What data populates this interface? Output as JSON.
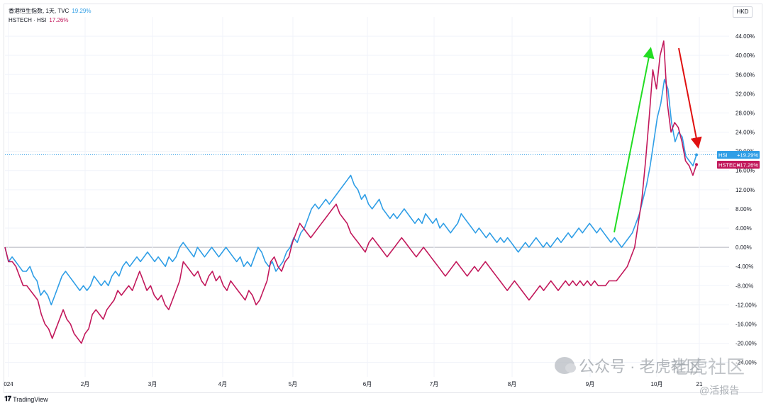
{
  "legend": {
    "hsi_title": "香港恒生指数, 1天, TVC",
    "hsi_value": "19.29%",
    "tech_title": "HSTECH · HSI",
    "tech_value": "17.26%"
  },
  "currency_button": "HKD",
  "footer": {
    "logo_mark": "𝟏𝟕",
    "brand": "TradingView"
  },
  "watermark": {
    "text": "公众号 · 老虎社区",
    "text2": "老虎社区",
    "text3": "@活报告"
  },
  "colors": {
    "hsi": "#2f9ee6",
    "hstech": "#c2185b",
    "up_arrow": "#22dd22",
    "down_arrow": "#e01010",
    "grid": "#f0f3fa",
    "zero_line": "#b2b5be"
  },
  "chart_data": {
    "type": "line",
    "ylim": [
      -27,
      48
    ],
    "y_ticks": [
      "44.00%",
      "40.00%",
      "36.00%",
      "32.00%",
      "28.00%",
      "24.00%",
      "20.00%",
      "16.00%",
      "12.00%",
      "8.00%",
      "4.00%",
      "0.00%",
      "-4.00%",
      "-8.00%",
      "-12.00%",
      "-16.00%",
      "-20.00%",
      "-24.00%"
    ],
    "x_ticks": [
      "024",
      "2月",
      "3月",
      "4月",
      "5月",
      "6月",
      "7月",
      "8月",
      "9月",
      "10月",
      "21"
    ],
    "series": [
      {
        "name": "HSI",
        "last_label": "HSI",
        "last_value": "+19.29%",
        "values": [
          0,
          -3,
          -2,
          -3,
          -4,
          -5,
          -5,
          -4,
          -6,
          -7,
          -10,
          -9,
          -10,
          -12,
          -10,
          -8,
          -6,
          -5,
          -6,
          -7,
          -8,
          -9,
          -8,
          -9,
          -8,
          -6,
          -7,
          -8,
          -7,
          -8,
          -6,
          -5,
          -6,
          -4,
          -3,
          -4,
          -3,
          -2,
          -3,
          -2,
          -1,
          -2,
          -3,
          -2,
          -3,
          -4,
          -2,
          -3,
          -2,
          0,
          1,
          0,
          -1,
          -2,
          0,
          -1,
          -2,
          -1,
          0,
          -1,
          -2,
          -1,
          0,
          -1,
          -2,
          -3,
          -2,
          -4,
          -3,
          -4,
          -2,
          0,
          -1,
          -3,
          -4,
          -3,
          -5,
          -4,
          -3,
          -1,
          0,
          2,
          1,
          3,
          4,
          6,
          8,
          9,
          8,
          9,
          10,
          9,
          10,
          11,
          12,
          13,
          14,
          15,
          13,
          12,
          10,
          11,
          9,
          8,
          9,
          10,
          8,
          7,
          6,
          7,
          6,
          7,
          8,
          7,
          6,
          5,
          6,
          5,
          7,
          6,
          5,
          6,
          4,
          5,
          4,
          3,
          4,
          5,
          7,
          6,
          5,
          4,
          3,
          4,
          3,
          2,
          3,
          2,
          1,
          2,
          1,
          2,
          1,
          0,
          -1,
          0,
          1,
          0,
          1,
          2,
          1,
          0,
          1,
          0,
          1,
          2,
          1,
          2,
          3,
          2,
          3,
          4,
          3,
          4,
          5,
          4,
          3,
          4,
          3,
          2,
          1,
          2,
          1,
          0,
          1,
          2,
          3,
          5,
          7,
          10,
          13,
          17,
          22,
          27,
          30,
          35,
          33,
          26,
          22,
          24,
          23,
          19,
          18,
          17,
          19.29
        ]
      },
      {
        "name": "HSTECH",
        "last_label": "HSTECH",
        "last_value": "+17.26%",
        "values": [
          0,
          -3,
          -3,
          -4,
          -6,
          -8,
          -8,
          -9,
          -10,
          -11,
          -14,
          -16,
          -17,
          -19,
          -17,
          -15,
          -13,
          -15,
          -16,
          -18,
          -19,
          -20,
          -18,
          -17,
          -14,
          -13,
          -14,
          -15,
          -13,
          -12,
          -11,
          -9,
          -10,
          -9,
          -8,
          -9,
          -7,
          -5,
          -7,
          -9,
          -8,
          -10,
          -11,
          -10,
          -12,
          -13,
          -11,
          -9,
          -7,
          -3,
          -4,
          -5,
          -6,
          -5,
          -7,
          -8,
          -6,
          -5,
          -7,
          -6,
          -8,
          -9,
          -7,
          -8,
          -9,
          -10,
          -11,
          -9,
          -10,
          -12,
          -11,
          -9,
          -7,
          -3,
          -2,
          -4,
          -5,
          -3,
          -2,
          1,
          3,
          5,
          4,
          3,
          2,
          3,
          4,
          5,
          6,
          7,
          8,
          9,
          7,
          6,
          5,
          3,
          2,
          1,
          0,
          -1,
          1,
          2,
          1,
          0,
          -1,
          -2,
          -1,
          0,
          1,
          2,
          1,
          0,
          -1,
          -2,
          -1,
          0,
          -1,
          -2,
          -3,
          -4,
          -5,
          -6,
          -5,
          -4,
          -3,
          -4,
          -5,
          -6,
          -5,
          -4,
          -5,
          -4,
          -3,
          -4,
          -5,
          -6,
          -7,
          -8,
          -9,
          -8,
          -7,
          -8,
          -9,
          -10,
          -11,
          -10,
          -9,
          -8,
          -9,
          -8,
          -7,
          -8,
          -9,
          -8,
          -7,
          -8,
          -7,
          -8,
          -7,
          -8,
          -7,
          -8,
          -7,
          -8,
          -8,
          -8,
          -7,
          -7,
          -7,
          -6,
          -5,
          -4,
          -2,
          0,
          5,
          10,
          18,
          27,
          37,
          33,
          40,
          43,
          30,
          24,
          26,
          25,
          22,
          18,
          17,
          15,
          17.26
        ]
      }
    ]
  }
}
